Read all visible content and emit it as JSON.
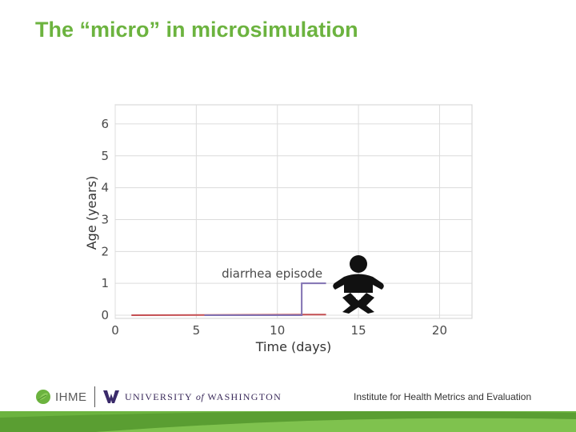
{
  "slide": {
    "title": "The “micro” in microsimulation"
  },
  "chart_data": {
    "type": "line",
    "title": "",
    "xlabel": "Time (days)",
    "ylabel": "Age (years)",
    "xlim": [
      0,
      22
    ],
    "ylim": [
      -0.1,
      6.6
    ],
    "xticks": [
      0,
      5,
      10,
      15,
      20
    ],
    "yticks": [
      0,
      1,
      2,
      3,
      4,
      5,
      6
    ],
    "grid": true,
    "series": [
      {
        "color": "#c44e52",
        "x": [
          1,
          13
        ],
        "y": [
          0,
          0.02
        ]
      },
      {
        "color": "#8172b2",
        "x": [
          5.5,
          11.5,
          11.5,
          13
        ],
        "y": [
          0,
          0,
          1,
          1
        ]
      }
    ],
    "annotations": [
      {
        "text": "diarrhea episode",
        "x": 11.5,
        "y": 1.3
      }
    ],
    "icons": [
      "baby-icon"
    ]
  },
  "footer": {
    "ihme_text": "IHME",
    "uw_prefix": "UNIVERSITY",
    "uw_of": "of",
    "uw_suffix": "WASHINGTON",
    "institute": "Institute for Health Metrics and Evaluation",
    "accent_color": "#6cb33f"
  }
}
